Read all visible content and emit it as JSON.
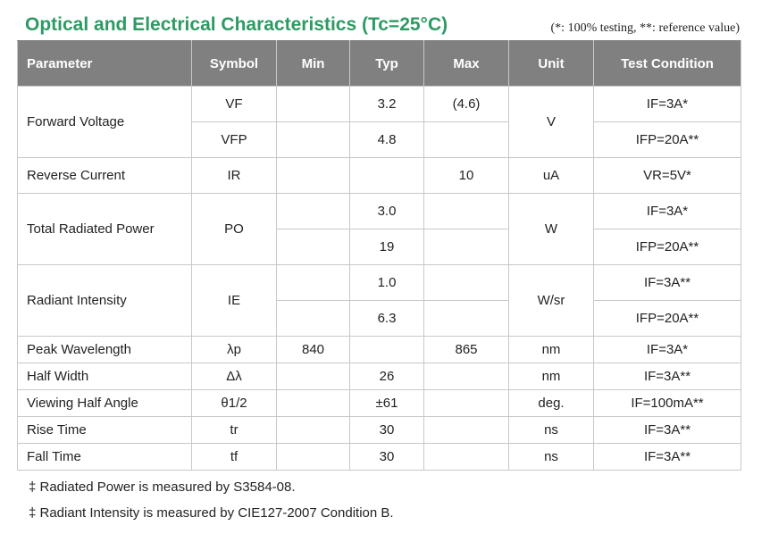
{
  "title": "Optical and Electrical Characteristics (Tc=25°C)",
  "note": "(*: 100% testing, **: reference value)",
  "headers": [
    "Parameter",
    "Symbol",
    "Min",
    "Typ",
    "Max",
    "Unit",
    "Test Condition"
  ],
  "rows": {
    "forward_voltage": {
      "param": "Forward Voltage",
      "unit": "V",
      "sub": [
        {
          "symbol": "VF",
          "min": "",
          "typ": "3.2",
          "max": "(4.6)",
          "cond": "IF=3A*"
        },
        {
          "symbol": "VFP",
          "min": "",
          "typ": "4.8",
          "max": "",
          "cond": "IFP=20A**"
        }
      ]
    },
    "reverse_current": {
      "param": "Reverse Current",
      "symbol": "IR",
      "min": "",
      "typ": "",
      "max": "10",
      "unit": "uA",
      "cond": "VR=5V*"
    },
    "total_radiated_power": {
      "param": "Total Radiated Power",
      "symbol": "PO",
      "unit": "W",
      "sub": [
        {
          "min": "",
          "typ": "3.0",
          "max": "",
          "cond": "IF=3A*"
        },
        {
          "min": "",
          "typ": "19",
          "max": "",
          "cond": "IFP=20A**"
        }
      ]
    },
    "radiant_intensity": {
      "param": "Radiant Intensity",
      "symbol": "IE",
      "unit": "W/sr",
      "sub": [
        {
          "min": "",
          "typ": "1.0",
          "max": "",
          "cond": "IF=3A**"
        },
        {
          "min": "",
          "typ": "6.3",
          "max": "",
          "cond": "IFP=20A**"
        }
      ]
    },
    "peak_wavelength": {
      "param": "Peak Wavelength",
      "symbol": "λp",
      "min": "840",
      "typ": "",
      "max": "865",
      "unit": "nm",
      "cond": "IF=3A*"
    },
    "half_width": {
      "param": "Half Width",
      "symbol": "Δλ",
      "min": "",
      "typ": "26",
      "max": "",
      "unit": "nm",
      "cond": "IF=3A**"
    },
    "viewing_half_angle": {
      "param": "Viewing Half Angle",
      "symbol": "θ1/2",
      "min": "",
      "typ": "±61",
      "max": "",
      "unit": "deg.",
      "cond": "IF=100mA**"
    },
    "rise_time": {
      "param": "Rise Time",
      "symbol": "tr",
      "min": "",
      "typ": "30",
      "max": "",
      "unit": "ns",
      "cond": "IF=3A**"
    },
    "fall_time": {
      "param": "Fall Time",
      "symbol": "tf",
      "min": "",
      "typ": "30",
      "max": "",
      "unit": "ns",
      "cond": "IF=3A**"
    }
  },
  "footnotes": [
    "‡ Radiated Power is measured by S3584-08.",
    "‡ Radiant Intensity is measured by CIE127-2007 Condition B."
  ]
}
